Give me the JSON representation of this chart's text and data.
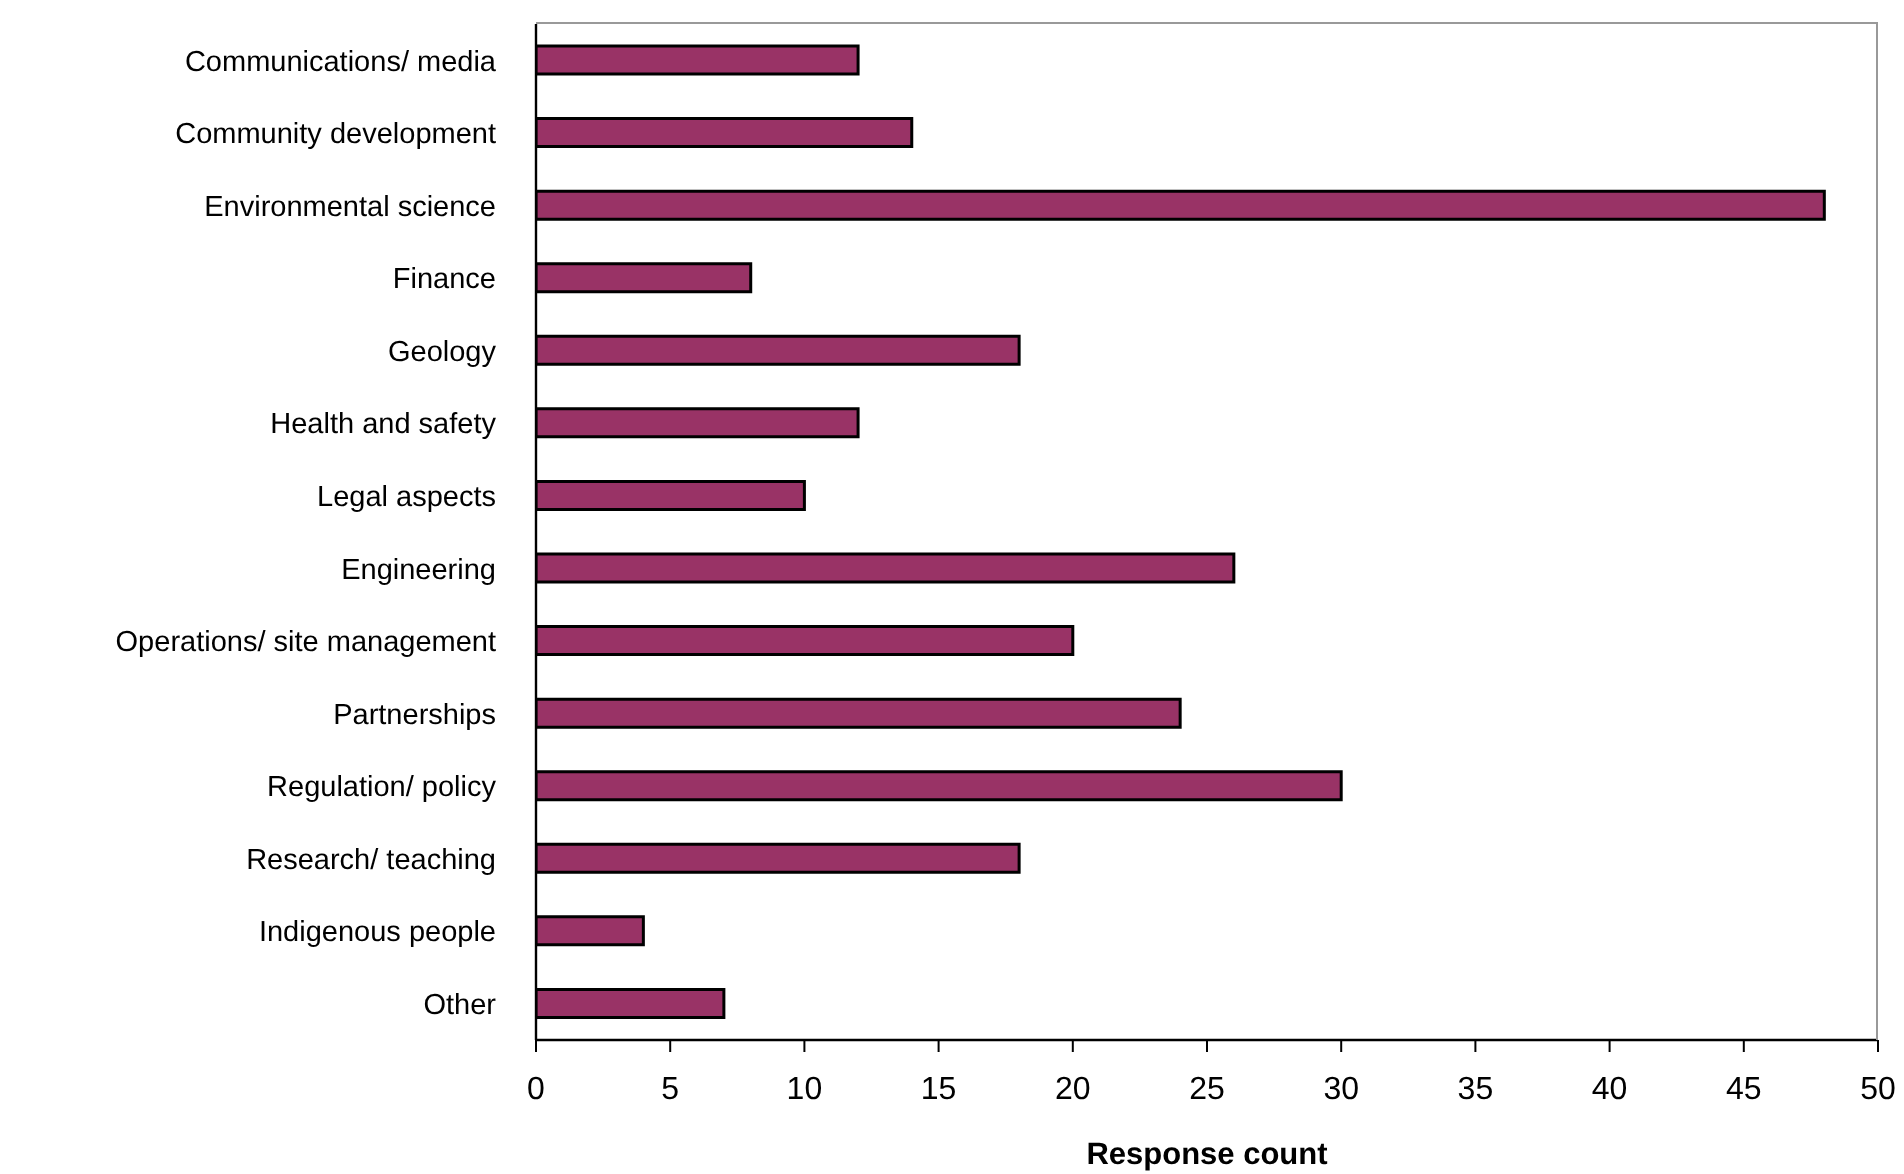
{
  "chart_data": {
    "type": "bar",
    "orientation": "horizontal",
    "xlabel": "Response count",
    "categories": [
      "Communications/ media",
      "Community development",
      "Environmental science",
      "Finance",
      "Geology",
      "Health and safety",
      "Legal aspects",
      "Engineering",
      "Operations/ site management",
      "Partnerships",
      "Regulation/ policy",
      "Research/ teaching",
      "Indigenous people",
      "Other"
    ],
    "values": [
      12,
      14,
      48,
      8,
      18,
      12,
      10,
      26,
      20,
      24,
      30,
      18,
      4,
      7
    ],
    "color": "#993366",
    "xlim": [
      0,
      50
    ],
    "xticks": [
      0,
      5,
      10,
      15,
      20,
      25,
      30,
      35,
      40,
      45,
      50
    ]
  }
}
